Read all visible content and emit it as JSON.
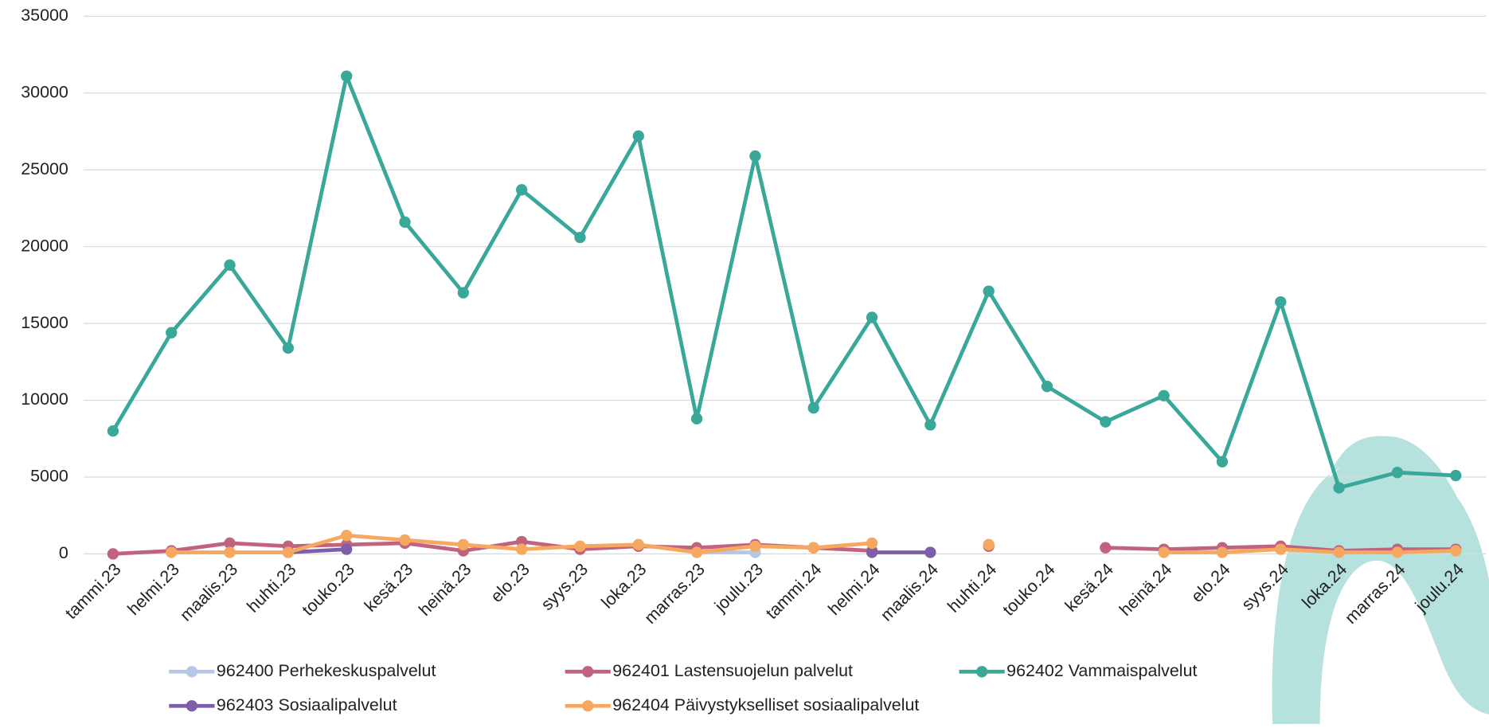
{
  "chart_data": {
    "type": "line",
    "categories": [
      "tammi.23",
      "helmi.23",
      "maalis.23",
      "huhti.23",
      "touko.23",
      "kesä.23",
      "heinä.23",
      "elo.23",
      "syys.23",
      "loka.23",
      "marras.23",
      "joulu.23",
      "tammi.24",
      "helmi.24",
      "maalis.24",
      "huhti.24",
      "touko.24",
      "kesä.24",
      "heinä.24",
      "elo.24",
      "syys.24",
      "loka.24",
      "marras.24",
      "joulu.24"
    ],
    "series": [
      {
        "name": "962400 Perhekeskuspalvelut",
        "color": "#b4c7e7",
        "values": [
          null,
          null,
          null,
          null,
          null,
          null,
          null,
          null,
          null,
          null,
          100,
          100,
          null,
          null,
          null,
          null,
          null,
          null,
          null,
          null,
          null,
          null,
          null,
          null
        ]
      },
      {
        "name": "962401 Lastensuojelun palvelut",
        "color": "#c0637f",
        "values": [
          0,
          200,
          700,
          500,
          600,
          700,
          200,
          800,
          300,
          500,
          400,
          600,
          400,
          200,
          null,
          500,
          null,
          400,
          300,
          400,
          500,
          200,
          300,
          300
        ]
      },
      {
        "name": "962402 Vammaispalvelut",
        "color": "#3aa899",
        "values": [
          8000,
          14400,
          18800,
          13400,
          31100,
          21600,
          17000,
          23700,
          20600,
          27200,
          8800,
          25900,
          9500,
          15400,
          8400,
          17100,
          10900,
          8600,
          10300,
          6000,
          16400,
          4300,
          5300,
          5100
        ]
      },
      {
        "name": "962403 Sosiaalipalvelut",
        "color": "#7d5ea8",
        "values": [
          null,
          null,
          null,
          100,
          300,
          null,
          null,
          null,
          null,
          null,
          null,
          null,
          null,
          100,
          100,
          null,
          null,
          null,
          null,
          null,
          null,
          null,
          null,
          null
        ]
      },
      {
        "name": "962404 Päivystykselliset sosiaalipalvelut",
        "color": "#f6a860",
        "values": [
          null,
          100,
          100,
          100,
          1200,
          900,
          600,
          300,
          500,
          600,
          100,
          500,
          400,
          700,
          null,
          600,
          null,
          null,
          100,
          100,
          300,
          100,
          100,
          200
        ]
      }
    ],
    "ylim": [
      0,
      35000
    ],
    "yticks": [
      0,
      5000,
      10000,
      15000,
      20000,
      25000,
      30000,
      35000
    ],
    "grid": true,
    "legend": "bottom"
  }
}
